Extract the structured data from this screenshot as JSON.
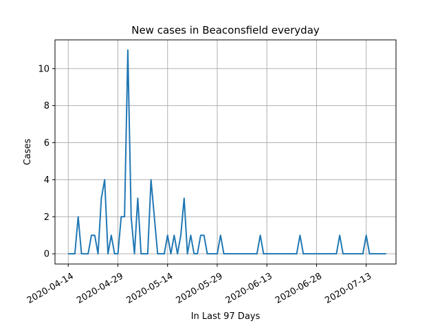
{
  "chart_data": {
    "type": "line",
    "title": "New cases in Beaconsfield everyday",
    "xlabel": "In Last 97 Days",
    "ylabel": "Cases",
    "ylim": [
      -0.55,
      11.55
    ],
    "xlim": [
      "2020-04-10",
      "2020-07-22"
    ],
    "grid": true,
    "line_color": "#1f77b4",
    "x_ticks": [
      "2020-04-14",
      "2020-04-29",
      "2020-05-14",
      "2020-05-29",
      "2020-06-13",
      "2020-06-28",
      "2020-07-13"
    ],
    "y_ticks": [
      0,
      2,
      4,
      6,
      8,
      10
    ],
    "x_start": "2020-04-14",
    "values": [
      0,
      0,
      0,
      2,
      0,
      0,
      0,
      1,
      1,
      0,
      3,
      4,
      0,
      1,
      0,
      0,
      2,
      2,
      11,
      2,
      0,
      3,
      0,
      0,
      0,
      4,
      2,
      0,
      0,
      0,
      1,
      0,
      1,
      0,
      1,
      3,
      0,
      1,
      0,
      0,
      1,
      1,
      0,
      0,
      0,
      0,
      1,
      0,
      0,
      0,
      0,
      0,
      0,
      0,
      0,
      0,
      0,
      0,
      1,
      0,
      0,
      0,
      0,
      0,
      0,
      0,
      0,
      0,
      0,
      0,
      1,
      0,
      0,
      0,
      0,
      0,
      0,
      0,
      0,
      0,
      0,
      0,
      1,
      0,
      0,
      0,
      0,
      0,
      0,
      0,
      1,
      0,
      0,
      0,
      0,
      0,
      0
    ]
  }
}
